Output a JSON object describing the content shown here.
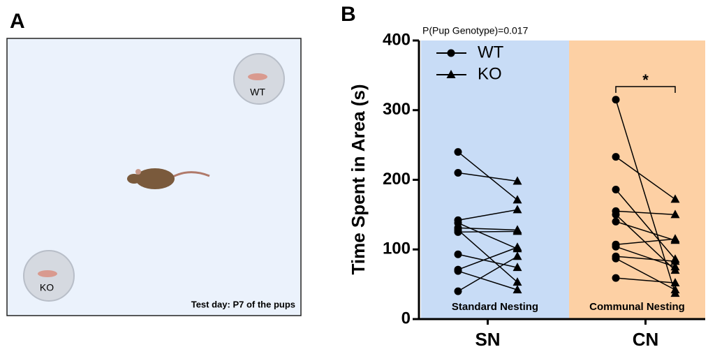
{
  "panel_a": {
    "label": "A",
    "pups": [
      "WT",
      "KO"
    ],
    "note": "Test day: P7 of the pups"
  },
  "chart_data": {
    "type": "paired-dot",
    "label": "B",
    "annotation": "P(Pup Genotype)=0.017",
    "ylabel": "Time Spent in Area (s)",
    "ylim": [
      0,
      400
    ],
    "yticks": [
      0,
      100,
      200,
      300,
      400
    ],
    "series": [
      {
        "name": "WT",
        "marker": "circle",
        "color": "#000000"
      },
      {
        "name": "KO",
        "marker": "triangle",
        "color": "#000000"
      }
    ],
    "groups": [
      {
        "category": "SN",
        "label": "Standard Nesting",
        "background": "#c8dcf6",
        "values": [
          [
            240,
            210,
            142,
            138,
            131,
            128,
            125,
            93,
            71,
            69,
            40
          ],
          [
            171,
            198,
            157,
            101,
            128,
            53,
            126,
            74,
            103,
            42,
            90
          ]
        ]
      },
      {
        "category": "CN",
        "label": "Communal Nesting",
        "background": "#fdd0a4",
        "significance": "*",
        "values": [
          [
            315,
            233,
            186,
            155,
            150,
            140,
            107,
            104,
            90,
            87,
            59
          ],
          [
            37,
            172,
            86,
            150,
            70,
            113,
            115,
            75,
            83,
            42,
            52
          ]
        ]
      }
    ]
  }
}
